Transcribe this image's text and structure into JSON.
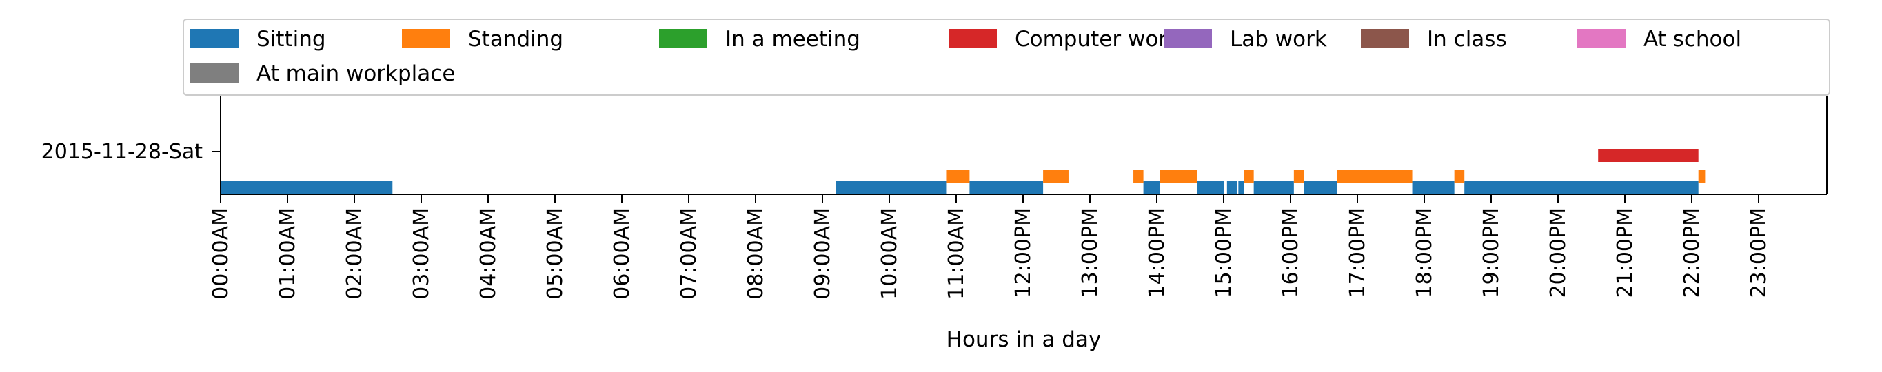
{
  "chart_data": {
    "type": "timeline",
    "title": "",
    "xlabel": "Hours in a day",
    "ylabel": "",
    "xlim": [
      0,
      24
    ],
    "x_ticks": [
      "00:00AM",
      "01:00AM",
      "02:00AM",
      "03:00AM",
      "04:00AM",
      "05:00AM",
      "06:00AM",
      "07:00AM",
      "08:00AM",
      "09:00AM",
      "10:00AM",
      "11:00AM",
      "12:00PM",
      "13:00PM",
      "14:00PM",
      "15:00PM",
      "16:00PM",
      "17:00PM",
      "18:00PM",
      "19:00PM",
      "20:00PM",
      "21:00PM",
      "22:00PM",
      "23:00PM"
    ],
    "y_ticks": [
      "2015-11-28-Sat"
    ],
    "grid": false,
    "legend_placement": "top",
    "series": [
      {
        "name": "Sitting",
        "color": "#1f77b4",
        "intervals": [
          [
            0.0,
            2.57
          ],
          [
            9.2,
            10.85
          ],
          [
            11.2,
            12.3
          ],
          [
            13.8,
            14.05
          ],
          [
            14.6,
            15.0
          ],
          [
            15.05,
            15.2
          ],
          [
            15.22,
            15.3
          ],
          [
            15.45,
            16.05
          ],
          [
            16.2,
            16.7
          ],
          [
            17.82,
            18.45
          ],
          [
            18.6,
            22.1
          ]
        ]
      },
      {
        "name": "Standing",
        "color": "#ff7f0e",
        "intervals": [
          [
            10.85,
            11.2
          ],
          [
            12.3,
            12.68
          ],
          [
            13.65,
            13.8
          ],
          [
            14.05,
            14.6
          ],
          [
            15.3,
            15.45
          ],
          [
            16.05,
            16.2
          ],
          [
            16.7,
            17.82
          ],
          [
            18.45,
            18.6
          ],
          [
            22.1,
            22.2
          ]
        ]
      },
      {
        "name": "In a meeting",
        "color": "#2ca02c",
        "intervals": []
      },
      {
        "name": "Computer work",
        "color": "#d62728",
        "intervals": [
          [
            20.6,
            22.1
          ]
        ]
      },
      {
        "name": "Lab work",
        "color": "#9467bd",
        "intervals": []
      },
      {
        "name": "In class",
        "color": "#8c564b",
        "intervals": []
      },
      {
        "name": "At school",
        "color": "#e377c2",
        "intervals": []
      },
      {
        "name": "At main workplace",
        "color": "#7f7f7f",
        "intervals": []
      }
    ]
  }
}
